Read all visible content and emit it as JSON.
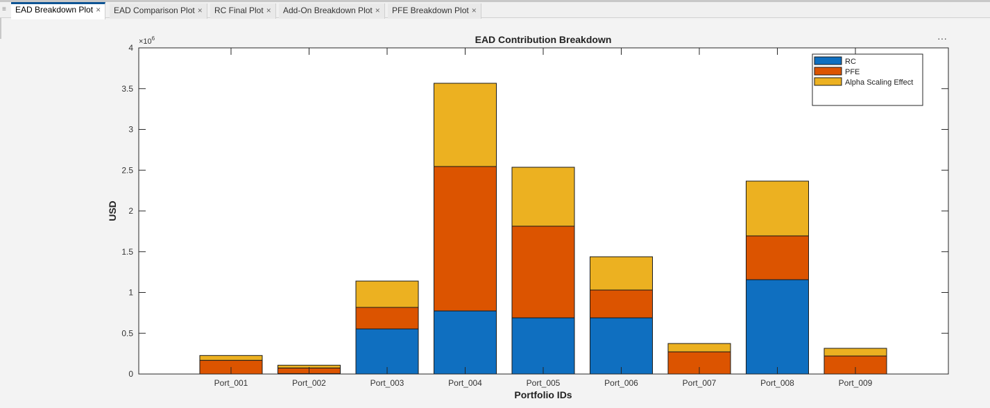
{
  "tabs": [
    {
      "label": "EAD Breakdown Plot",
      "active": true
    },
    {
      "label": "EAD Comparison Plot"
    },
    {
      "label": "RC Final Plot"
    },
    {
      "label": "Add-On Breakdown Plot"
    },
    {
      "label": "PFE Breakdown Plot"
    }
  ],
  "toolbar": {
    "more_label": "···"
  },
  "chart_data": {
    "type": "bar",
    "stacked": true,
    "title": "EAD Contribution Breakdown",
    "xlabel": "Portfolio IDs",
    "ylabel": "USD",
    "y_exponent_label": "×10^6",
    "categories": [
      "Port_001",
      "Port_002",
      "Port_003",
      "Port_004",
      "Port_005",
      "Port_006",
      "Port_007",
      "Port_008",
      "Port_009"
    ],
    "series": [
      {
        "name": "RC",
        "color": "#0f6fc0",
        "values": [
          0,
          5000,
          553000,
          774000,
          689000,
          689000,
          0,
          1157000,
          0
        ]
      },
      {
        "name": "PFE",
        "color": "#dc5400",
        "values": [
          168000,
          69000,
          264000,
          1771000,
          1124000,
          341000,
          272000,
          537000,
          221000
        ]
      },
      {
        "name": "Alpha Scaling Effect",
        "color": "#ecb121",
        "values": [
          59000,
          34000,
          323000,
          1021000,
          723000,
          408000,
          102000,
          672000,
          94000
        ]
      }
    ],
    "ylim": [
      0,
      4000000
    ],
    "yticks": [
      {
        "v": 0,
        "label": "0"
      },
      {
        "v": 500000,
        "label": "0.5"
      },
      {
        "v": 1000000,
        "label": "1"
      },
      {
        "v": 1500000,
        "label": "1.5"
      },
      {
        "v": 2000000,
        "label": "2"
      },
      {
        "v": 2500000,
        "label": "2.5"
      },
      {
        "v": 3000000,
        "label": "3"
      },
      {
        "v": 3500000,
        "label": "3.5"
      },
      {
        "v": 4000000,
        "label": "4"
      }
    ],
    "grid": false,
    "legend": "top-right"
  }
}
